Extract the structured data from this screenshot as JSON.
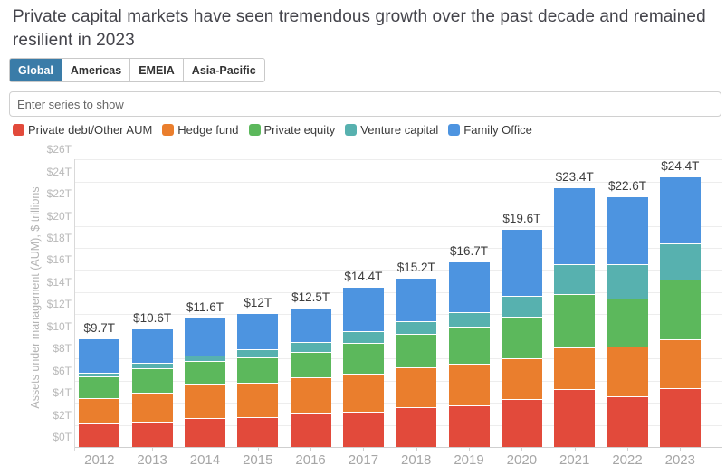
{
  "page": {
    "title": "Private capital markets have seen tremendous growth over the past decade and remained resilient in 2023"
  },
  "tabs": [
    {
      "label": "Global",
      "active": true
    },
    {
      "label": "Americas",
      "active": false
    },
    {
      "label": "EMEIA",
      "active": false
    },
    {
      "label": "Asia-Pacific",
      "active": false
    }
  ],
  "series_input": {
    "placeholder": "Enter series to show"
  },
  "colors": {
    "active_tab_bg": "#3a7ca8",
    "active_tab_text": "#ffffff",
    "grid": "#ededed",
    "axis_baseline": "#cfcfcf"
  },
  "chart_data": {
    "type": "bar",
    "stacked": true,
    "title": "Private capital markets AUM by segment",
    "xlabel": "",
    "ylabel": "Assets under management (AUM), $ trillions",
    "ylim": [
      0,
      26
    ],
    "grid": true,
    "legend_position": "top",
    "categories": [
      "2012",
      "2013",
      "2014",
      "2015",
      "2016",
      "2017",
      "2018",
      "2019",
      "2020",
      "2021",
      "2022",
      "2023"
    ],
    "yticks": [
      "$0T",
      "$2T",
      "$4T",
      "$6T",
      "$8T",
      "$10T",
      "$12T",
      "$14T",
      "$16T",
      "$18T",
      "$20T",
      "$22T",
      "$24T",
      "$26T"
    ],
    "series": [
      {
        "name": "Private debt/Other AUM",
        "color": "#e24a3b",
        "values": [
          2.1,
          2.3,
          2.6,
          2.7,
          3.0,
          3.2,
          3.6,
          3.8,
          4.3,
          5.2,
          4.6,
          5.3
        ]
      },
      {
        "name": "Hedge fund",
        "color": "#ea7e2d",
        "values": [
          2.3,
          2.6,
          3.1,
          3.1,
          3.3,
          3.4,
          3.6,
          3.7,
          3.7,
          3.8,
          4.5,
          4.4
        ]
      },
      {
        "name": "Private equity",
        "color": "#5cb85c",
        "values": [
          2.0,
          2.2,
          2.1,
          2.3,
          2.3,
          2.8,
          3.0,
          3.4,
          3.8,
          4.8,
          4.3,
          5.4
        ]
      },
      {
        "name": "Venture capital",
        "color": "#57b1af",
        "values": [
          0.3,
          0.5,
          0.5,
          0.7,
          0.9,
          1.1,
          1.2,
          1.3,
          1.9,
          2.7,
          3.1,
          3.3
        ]
      },
      {
        "name": "Family Office",
        "color": "#4d94e0",
        "values": [
          3.0,
          3.0,
          3.3,
          3.2,
          3.0,
          3.9,
          3.8,
          4.5,
          5.9,
          6.9,
          6.1,
          6.0
        ]
      }
    ],
    "totals": [
      9.7,
      10.6,
      11.6,
      12.0,
      12.5,
      14.4,
      15.2,
      16.7,
      19.6,
      23.4,
      22.6,
      24.4
    ],
    "totals_labels": [
      "$9.7T",
      "$10.6T",
      "$11.6T",
      "$12T",
      "$12.5T",
      "$14.4T",
      "$15.2T",
      "$16.7T",
      "$19.6T",
      "$23.4T",
      "$22.6T",
      "$24.4T"
    ]
  }
}
